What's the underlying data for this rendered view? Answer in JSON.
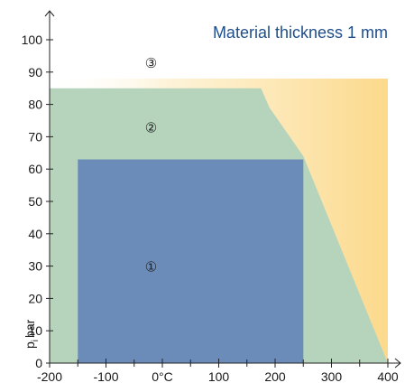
{
  "chart_data": {
    "type": "area",
    "title": "Material thickness 1 mm",
    "xlabel": "",
    "ylabel": "p",
    "ylabel_subscript": "i",
    "ylabel_unit": "bar",
    "xlim": [
      -200,
      400
    ],
    "ylim": [
      0,
      100
    ],
    "x_ticks": [
      -200,
      -100,
      0,
      100,
      200,
      300,
      400
    ],
    "x_tick_labels": [
      "-200",
      "-100",
      "0°C",
      "100",
      "200",
      "300",
      "400"
    ],
    "y_ticks": [
      0,
      10,
      20,
      30,
      40,
      50,
      60,
      70,
      80,
      90,
      100
    ],
    "y_tick_labels": [
      "0",
      "10",
      "20",
      "30",
      "40",
      "50",
      "60",
      "70",
      "80",
      "90",
      "100"
    ],
    "grid": false,
    "regions": [
      {
        "label": "③",
        "label_pos": [
          -20,
          93
        ],
        "color": "#fde3a8",
        "polygon": [
          [
            -200,
            88
          ],
          [
            400,
            88
          ],
          [
            400,
            0
          ],
          [
            -200,
            0
          ]
        ]
      },
      {
        "label": "②",
        "label_pos": [
          -20,
          73
        ],
        "color": "#b5d4bb",
        "polygon": [
          [
            -200,
            0
          ],
          [
            -200,
            85
          ],
          [
            175,
            85
          ],
          [
            190,
            79
          ],
          [
            250,
            64
          ],
          [
            400,
            0
          ]
        ]
      },
      {
        "label": "①",
        "label_pos": [
          -20,
          30
        ],
        "color": "#6b8cb9",
        "polygon": [
          [
            -150,
            0
          ],
          [
            -150,
            63
          ],
          [
            250,
            63
          ],
          [
            250,
            0
          ]
        ]
      }
    ]
  }
}
